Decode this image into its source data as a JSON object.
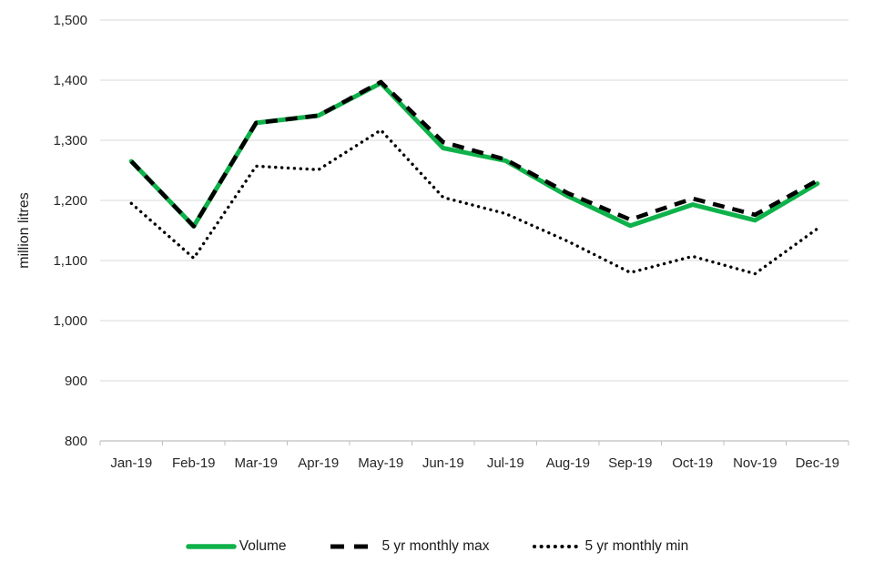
{
  "chart_data": {
    "type": "line",
    "title": "",
    "xlabel": "",
    "ylabel": "million litres",
    "ylim": [
      800,
      1500
    ],
    "grid": true,
    "legend_position": "bottom",
    "y_ticks": [
      {
        "value": 800,
        "label": "800"
      },
      {
        "value": 900,
        "label": "900"
      },
      {
        "value": 1000,
        "label": "1,000"
      },
      {
        "value": 1100,
        "label": "1,100"
      },
      {
        "value": 1200,
        "label": "1,200"
      },
      {
        "value": 1300,
        "label": "1,300"
      },
      {
        "value": 1400,
        "label": "1,400"
      },
      {
        "value": 1500,
        "label": "1,500"
      }
    ],
    "categories": [
      "Jan-19",
      "Feb-19",
      "Mar-19",
      "Apr-19",
      "May-19",
      "Jun-19",
      "Jul-19",
      "Aug-19",
      "Sep-19",
      "Oct-19",
      "Nov-19",
      "Dec-19"
    ],
    "series": [
      {
        "name": "Volume",
        "style": "solid",
        "color": "#0fb24a",
        "values": [
          1265,
          1157,
          1329,
          1341,
          1395,
          1287,
          1266,
          1207,
          1158,
          1193,
          1167,
          1228
        ]
      },
      {
        "name": "5 yr monthly max",
        "style": "dashed",
        "color": "#000000",
        "values": [
          1265,
          1157,
          1329,
          1341,
          1397,
          1297,
          1268,
          1212,
          1168,
          1203,
          1176,
          1233
        ]
      },
      {
        "name": "5 yr monthly min",
        "style": "dotted",
        "color": "#000000",
        "values": [
          1195,
          1104,
          1257,
          1251,
          1317,
          1205,
          1178,
          1132,
          1080,
          1107,
          1078,
          1153
        ]
      }
    ],
    "colors": {
      "grid": "#d9d9d9",
      "axis": "#bfbfbf",
      "tick_text": "#262626",
      "background": "#ffffff"
    }
  }
}
